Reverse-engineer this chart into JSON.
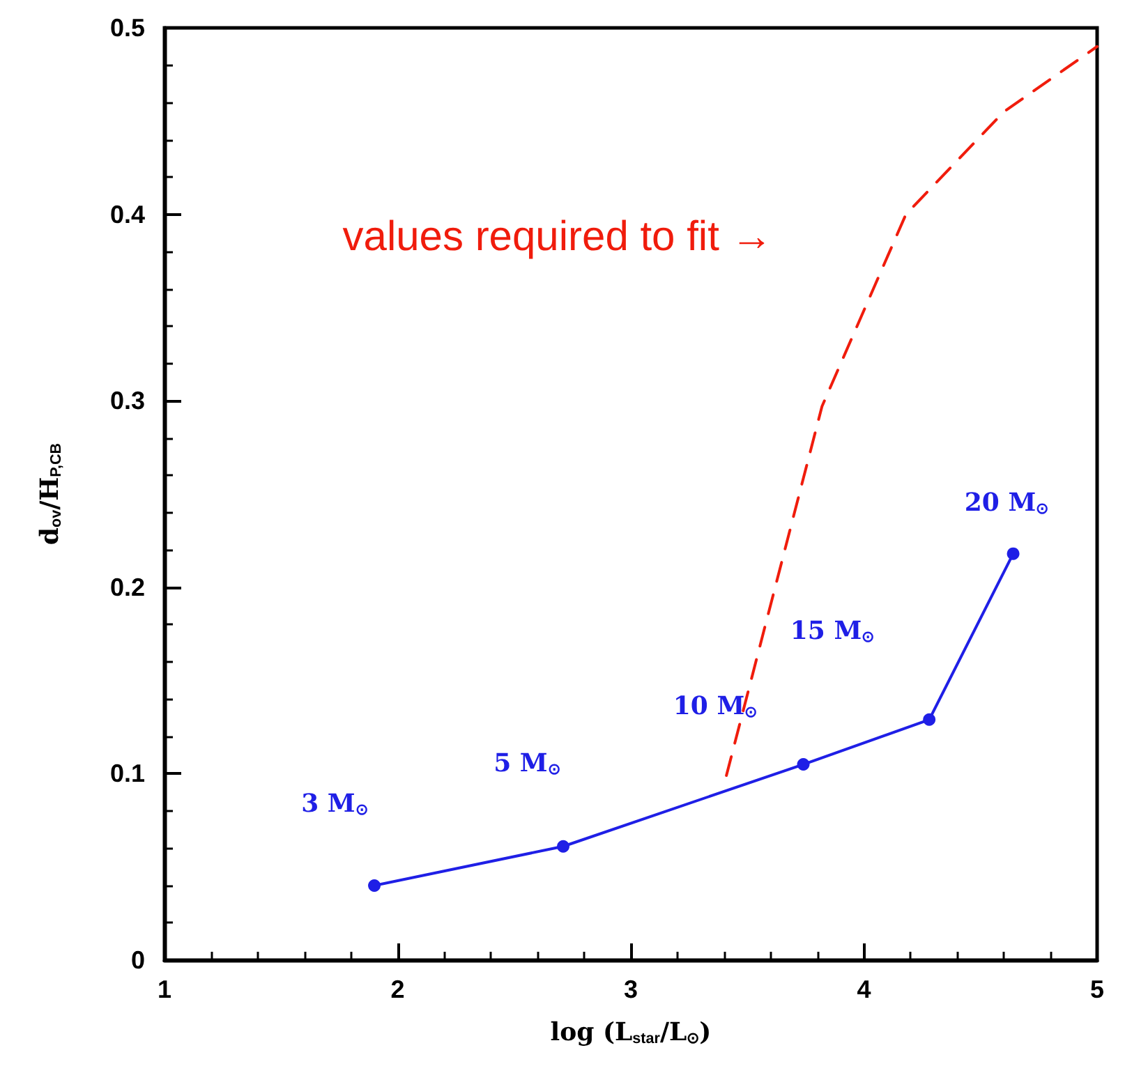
{
  "chart_data": {
    "type": "line",
    "xlabel": "log (L$_{star}$/L$_{⊙}$)",
    "ylabel": "d$_{ov}$/H$_{P,CB}$",
    "xlim": [
      1,
      5
    ],
    "xticks": [
      1,
      2,
      3,
      4,
      5
    ],
    "ylim": [
      0,
      0.5
    ],
    "yticks": [
      0,
      0.1,
      0.2,
      0.3,
      0.4,
      0.5
    ],
    "series": [
      {
        "color": "#1f1fe6",
        "marker": "circle",
        "line_style": "solid",
        "x": [
          1.9,
          2.71,
          3.74,
          4.28,
          4.64
        ],
        "values": [
          0.04,
          0.061,
          0.105,
          0.129,
          0.218
        ]
      },
      {
        "color": "#f01c0c",
        "marker": "none",
        "line_style": "dashed",
        "x": [
          3.41,
          3.82,
          4.18,
          4.6,
          5
        ],
        "values": [
          0.099,
          0.297,
          0.4,
          0.455,
          0.49
        ]
      }
    ],
    "annotations": [
      "3 M$_{⊙}$",
      "5 M$_{⊙}$",
      "10 M$_{⊙}$",
      "15 M$_{⊙}$",
      "20 M$_{⊙}$",
      "values required to fit →"
    ]
  }
}
